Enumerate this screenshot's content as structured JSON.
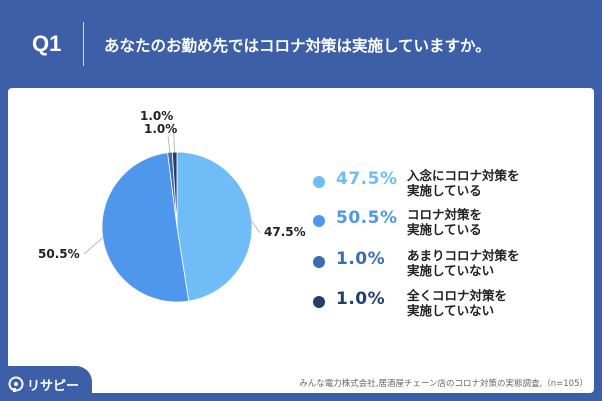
{
  "header": {
    "q_label": "Q1",
    "question": "あなたのお勤め先ではコロナ対策は実施していますか。"
  },
  "chart_data": {
    "type": "pie",
    "slices": [
      {
        "label": "入念にコロナ対策を実施している",
        "label_lines": [
          "入念にコロナ対策を",
          "実施している"
        ],
        "value": 47.5,
        "display": "47.5%",
        "color": "#6fbcf6"
      },
      {
        "label": "コロナ対策を実施している",
        "label_lines": [
          "コロナ対策を",
          "実施している"
        ],
        "value": 50.5,
        "display": "50.5%",
        "color": "#4e97ec"
      },
      {
        "label": "あまりコロナ対策を実施していない",
        "label_lines": [
          "あまりコロナ対策を",
          "実施していない"
        ],
        "value": 1.0,
        "display": "1.0%",
        "color": "#3a6db1"
      },
      {
        "label": "全くコロナ対策を実施していない",
        "label_lines": [
          "全くコロナ対策を",
          "実施していない"
        ],
        "value": 1.0,
        "display": "1.0%",
        "color": "#213f6c"
      }
    ],
    "legend_placement": "right"
  },
  "logo": {
    "text": "リサピー"
  },
  "footnote": "みんな電力株式会社,居酒屋チェーン店のコロナ対策の実態調査,（n=105）",
  "colors": {
    "header_bg": "#3c5fa8",
    "card_bg": "#ffffff"
  }
}
